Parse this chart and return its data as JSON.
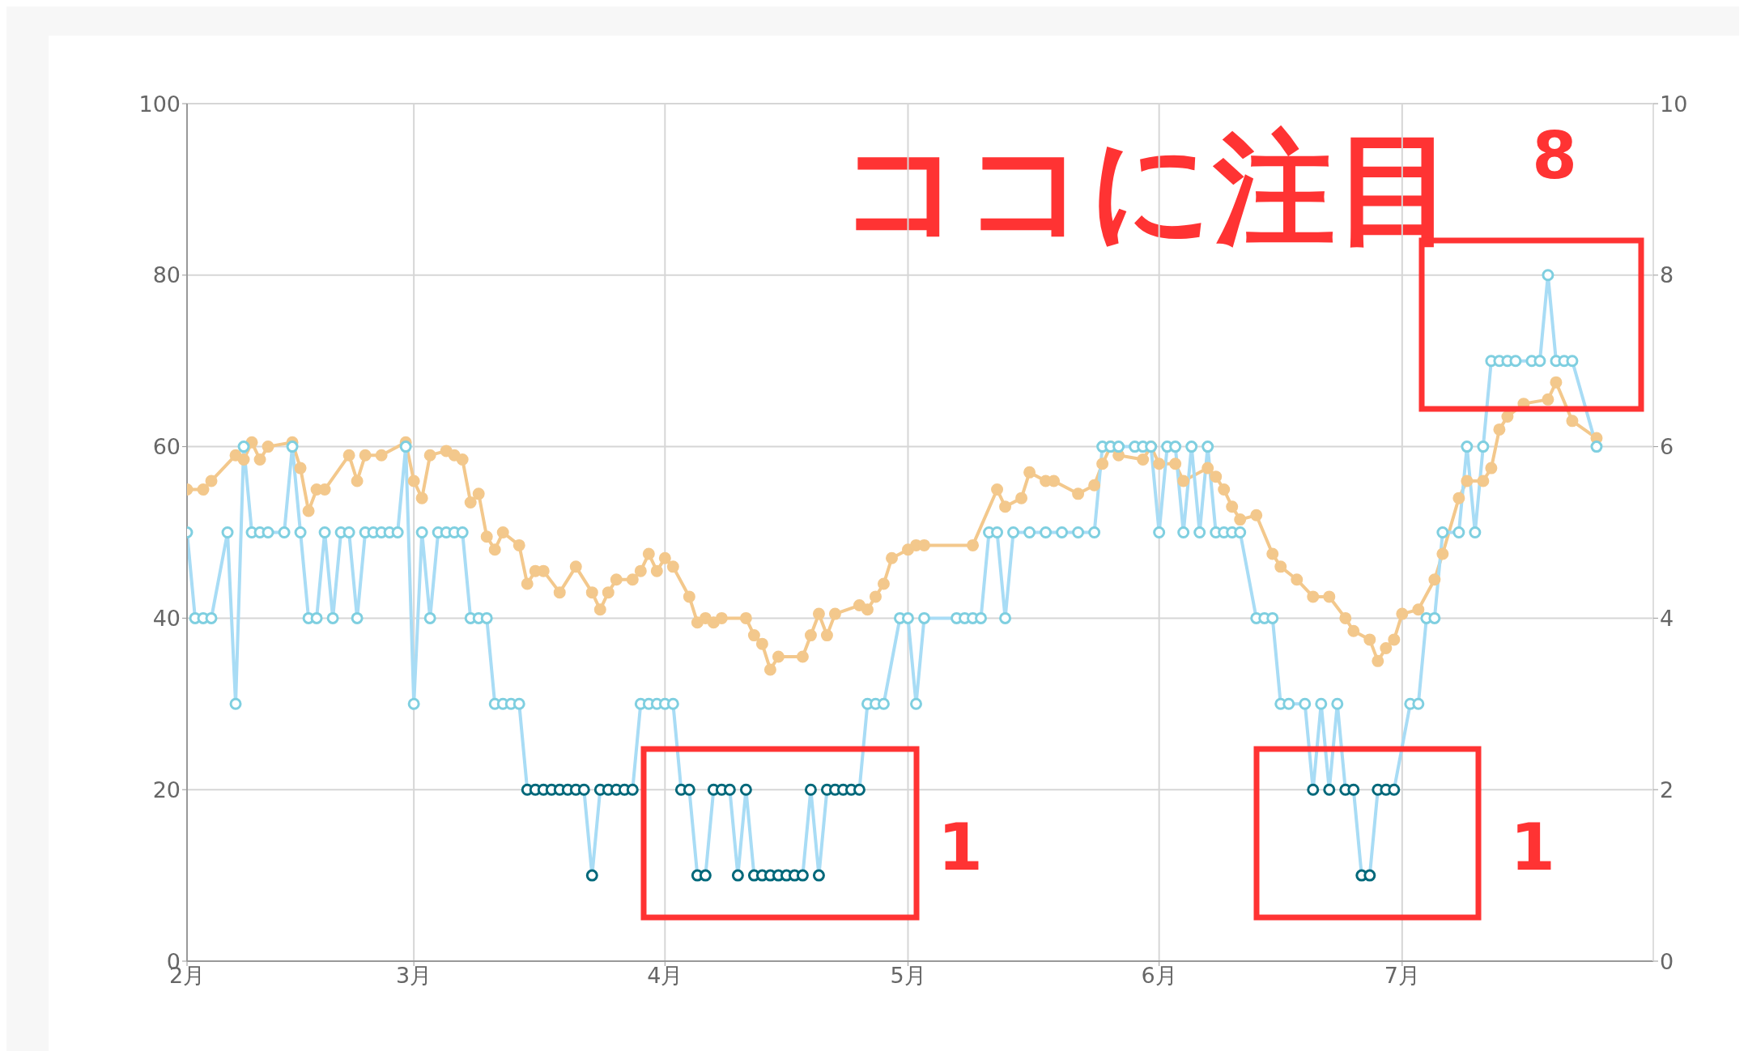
{
  "chart_data": {
    "type": "line",
    "xlim": [
      "--02-01",
      "--08-01"
    ],
    "xticks": [
      {
        "value": "--02-01",
        "label": "2月"
      },
      {
        "value": "--03-01",
        "label": "3月"
      },
      {
        "value": "--04-01",
        "label": "4月"
      },
      {
        "value": "--05-01",
        "label": "5月"
      },
      {
        "value": "--06-01",
        "label": "6月"
      },
      {
        "value": "--07-01",
        "label": "7月"
      }
    ],
    "ylim": [
      0,
      100
    ],
    "yticks": [
      0,
      20,
      40,
      60,
      80,
      100
    ],
    "y2lim": [
      0,
      10
    ],
    "y2ticks": [
      0,
      2,
      4,
      6,
      8,
      10
    ],
    "grid": true,
    "marker": "circle",
    "line_style": "solid",
    "annotations": [
      "ココに注目",
      "8",
      "1",
      "1"
    ],
    "series": [
      {
        "color": "#f3c88c",
        "x": [
          "--02-01",
          "--02-03",
          "--02-04",
          "--02-07",
          "--02-08",
          "--02-09",
          "--02-10",
          "--02-11",
          "--02-14",
          "--02-15",
          "--02-16",
          "--02-17",
          "--02-18",
          "--02-21",
          "--02-22",
          "--02-23",
          "--02-25",
          "--02-28",
          "--03-01",
          "--03-02",
          "--03-03",
          "--03-05",
          "--03-06",
          "--03-07",
          "--03-08",
          "--03-09",
          "--03-10",
          "--03-11",
          "--03-12",
          "--03-14",
          "--03-15",
          "--03-16",
          "--03-17",
          "--03-19",
          "--03-21",
          "--03-23",
          "--03-24",
          "--03-25",
          "--03-26",
          "--03-28",
          "--03-29",
          "--03-30",
          "--03-31",
          "--04-01",
          "--04-02",
          "--04-04",
          "--04-05",
          "--04-06",
          "--04-07",
          "--04-08",
          "--04-11",
          "--04-12",
          "--04-13",
          "--04-14",
          "--04-15",
          "--04-18",
          "--04-19",
          "--04-20",
          "--04-21",
          "--04-22",
          "--04-25",
          "--04-26",
          "--04-27",
          "--04-28",
          "--04-29",
          "--05-01",
          "--05-02",
          "--05-03",
          "--05-09",
          "--05-12",
          "--05-13",
          "--05-15",
          "--05-16",
          "--05-18",
          "--05-19",
          "--05-22",
          "--05-24",
          "--05-25",
          "--05-26",
          "--05-27",
          "--05-30",
          "--05-31",
          "--06-01",
          "--06-03",
          "--06-04",
          "--06-07",
          "--06-08",
          "--06-09",
          "--06-10",
          "--06-11",
          "--06-13",
          "--06-15",
          "--06-16",
          "--06-18",
          "--06-20",
          "--06-22",
          "--06-24",
          "--06-25",
          "--06-27",
          "--06-28",
          "--06-29",
          "--06-30",
          "--07-01",
          "--07-03",
          "--07-05",
          "--07-06",
          "--07-08",
          "--07-09",
          "--07-11",
          "--07-12",
          "--07-13",
          "--07-14",
          "--07-16",
          "--07-19",
          "--07-20",
          "--07-22",
          "--07-25"
        ],
        "values": [
          55,
          55,
          56,
          59,
          58.5,
          60.5,
          58.5,
          60,
          60.5,
          57.5,
          52.5,
          55,
          55,
          59,
          56,
          59,
          59,
          60.5,
          56,
          54,
          59,
          59.5,
          59,
          58.5,
          53.5,
          54.5,
          49.5,
          48,
          50,
          48.5,
          44,
          45.5,
          45.5,
          43,
          46,
          43,
          41,
          43,
          44.5,
          44.5,
          45.5,
          47.5,
          45.5,
          47,
          46,
          42.5,
          39.5,
          40,
          39.5,
          40,
          40,
          38,
          37,
          34,
          35.5,
          35.5,
          38,
          40.5,
          38,
          40.5,
          41.5,
          41,
          42.5,
          44,
          47,
          48,
          48.5,
          48.5,
          48.5,
          55,
          53,
          54,
          57,
          56,
          56,
          54.5,
          55.5,
          58,
          60,
          59,
          58.5,
          60,
          58,
          58,
          56,
          57.5,
          56.5,
          55,
          53,
          51.5,
          52,
          47.5,
          46,
          44.5,
          42.5,
          42.5,
          40,
          38.5,
          37.5,
          35,
          36.5,
          37.5,
          40.5,
          41,
          44.5,
          47.5,
          54,
          56,
          56,
          57.5,
          62,
          63.5,
          65,
          65.5,
          67.5,
          63,
          61
        ]
      },
      {
        "color": "#a8dcf5",
        "axis": "y2",
        "x": [
          "--02-01",
          "--02-02",
          "--02-03",
          "--02-04",
          "--02-06",
          "--02-07",
          "--02-08",
          "--02-09",
          "--02-10",
          "--02-11",
          "--02-13",
          "--02-14",
          "--02-15",
          "--02-16",
          "--02-17",
          "--02-18",
          "--02-19",
          "--02-20",
          "--02-21",
          "--02-22",
          "--02-23",
          "--02-24",
          "--02-25",
          "--02-26",
          "--02-27",
          "--02-28",
          "--03-01",
          "--03-02",
          "--03-03",
          "--03-04",
          "--03-05",
          "--03-06",
          "--03-07",
          "--03-08",
          "--03-09",
          "--03-10",
          "--03-11",
          "--03-12",
          "--03-13",
          "--03-14",
          "--03-15",
          "--03-16",
          "--03-17",
          "--03-18",
          "--03-19",
          "--03-20",
          "--03-21",
          "--03-22",
          "--03-23",
          "--03-24",
          "--03-25",
          "--03-26",
          "--03-27",
          "--03-28",
          "--03-29",
          "--03-30",
          "--03-31",
          "--04-01",
          "--04-02",
          "--04-03",
          "--04-04",
          "--04-05",
          "--04-06",
          "--04-07",
          "--04-08",
          "--04-09",
          "--04-10",
          "--04-11",
          "--04-12",
          "--04-13",
          "--04-14",
          "--04-15",
          "--04-16",
          "--04-17",
          "--04-18",
          "--04-19",
          "--04-20",
          "--04-21",
          "--04-22",
          "--04-23",
          "--04-24",
          "--04-25",
          "--04-26",
          "--04-27",
          "--04-28",
          "--04-30",
          "--05-01",
          "--05-02",
          "--05-03",
          "--05-07",
          "--05-08",
          "--05-09",
          "--05-10",
          "--05-11",
          "--05-12",
          "--05-13",
          "--05-14",
          "--05-16",
          "--05-18",
          "--05-20",
          "--05-22",
          "--05-24",
          "--05-25",
          "--05-26",
          "--05-27",
          "--05-29",
          "--05-30",
          "--05-31",
          "--06-01",
          "--06-02",
          "--06-03",
          "--06-04",
          "--06-05",
          "--06-06",
          "--06-07",
          "--06-08",
          "--06-09",
          "--06-10",
          "--06-11",
          "--06-13",
          "--06-14",
          "--06-15",
          "--06-16",
          "--06-17",
          "--06-19",
          "--06-20",
          "--06-21",
          "--06-22",
          "--06-23",
          "--06-24",
          "--06-25",
          "--06-26",
          "--06-27",
          "--06-28",
          "--06-29",
          "--06-30",
          "--07-02",
          "--07-03",
          "--07-04",
          "--07-05",
          "--07-06",
          "--07-08",
          "--07-09",
          "--07-10",
          "--07-11",
          "--07-12",
          "--07-13",
          "--07-14",
          "--07-15",
          "--07-17",
          "--07-18",
          "--07-19",
          "--07-20",
          "--07-21",
          "--07-22",
          "--07-25"
        ],
        "values": [
          5,
          4,
          4,
          4,
          5,
          3,
          6,
          5,
          5,
          5,
          5,
          6,
          5,
          4,
          4,
          5,
          4,
          5,
          5,
          4,
          5,
          5,
          5,
          5,
          5,
          6,
          3,
          5,
          4,
          5,
          5,
          5,
          5,
          4,
          4,
          4,
          3,
          3,
          3,
          3,
          2,
          2,
          2,
          2,
          2,
          2,
          2,
          2,
          1,
          2,
          2,
          2,
          2,
          2,
          3,
          3,
          3,
          3,
          3,
          2,
          2,
          1,
          1,
          2,
          2,
          2,
          1,
          2,
          1,
          1,
          1,
          1,
          1,
          1,
          1,
          2,
          1,
          2,
          2,
          2,
          2,
          2,
          3,
          3,
          3,
          4,
          4,
          3,
          4,
          4,
          4,
          4,
          4,
          5,
          5,
          4,
          5,
          5,
          5,
          5,
          5,
          5,
          6,
          6,
          6,
          6,
          6,
          6,
          5,
          6,
          6,
          5,
          6,
          5,
          6,
          5,
          5,
          5,
          5,
          4,
          4,
          4,
          3,
          3,
          3,
          2,
          3,
          2,
          3,
          2,
          2,
          1,
          1,
          2,
          2,
          2,
          3,
          3,
          4,
          4,
          5,
          5,
          6,
          5,
          6,
          7,
          7,
          7,
          7,
          7,
          7,
          8,
          7,
          7,
          7,
          6
        ],
        "colors": [
          "#7fcfe0",
          "#7fcfe0",
          "#7fcfe0",
          "#7fcfe0",
          "#7fcfe0",
          "#7fcfe0",
          "#7fcfe0",
          "#7fcfe0",
          "#7fcfe0",
          "#7fcfe0",
          "#7fcfe0",
          "#7fcfe0",
          "#7fcfe0",
          "#7fcfe0",
          "#7fcfe0",
          "#7fcfe0",
          "#7fcfe0",
          "#7fcfe0",
          "#7fcfe0",
          "#7fcfe0",
          "#7fcfe0",
          "#7fcfe0",
          "#7fcfe0",
          "#7fcfe0",
          "#7fcfe0",
          "#7fcfe0",
          "#7fcfe0",
          "#7fcfe0",
          "#7fcfe0",
          "#7fcfe0",
          "#7fcfe0",
          "#7fcfe0",
          "#7fcfe0",
          "#7fcfe0",
          "#7fcfe0",
          "#7fcfe0",
          "#7fcfe0",
          "#7fcfe0",
          "#7fcfe0",
          "#7fcfe0",
          "#00687a",
          "#00687a",
          "#00687a",
          "#00687a",
          "#00687a",
          "#00687a",
          "#00687a",
          "#00687a",
          "#00687a",
          "#00687a",
          "#00687a",
          "#00687a",
          "#00687a",
          "#00687a",
          "#7fcfe0",
          "#7fcfe0",
          "#7fcfe0",
          "#7fcfe0",
          "#7fcfe0",
          "#00687a",
          "#00687a",
          "#00687a",
          "#00687a",
          "#00687a",
          "#00687a",
          "#00687a",
          "#00687a",
          "#00687a",
          "#00687a",
          "#00687a",
          "#00687a",
          "#00687a",
          "#00687a",
          "#00687a",
          "#00687a",
          "#00687a",
          "#00687a",
          "#00687a",
          "#00687a",
          "#00687a",
          "#00687a",
          "#00687a",
          "#7fcfe0",
          "#7fcfe0",
          "#7fcfe0",
          "#7fcfe0",
          "#7fcfe0",
          "#7fcfe0",
          "#7fcfe0",
          "#7fcfe0",
          "#7fcfe0",
          "#7fcfe0",
          "#7fcfe0",
          "#7fcfe0",
          "#7fcfe0",
          "#7fcfe0",
          "#7fcfe0",
          "#7fcfe0",
          "#7fcfe0",
          "#7fcfe0",
          "#7fcfe0",
          "#7fcfe0",
          "#7fcfe0",
          "#7fcfe0",
          "#7fcfe0",
          "#7fcfe0",
          "#7fcfe0",
          "#7fcfe0",
          "#7fcfe0",
          "#7fcfe0",
          "#7fcfe0",
          "#7fcfe0",
          "#7fcfe0",
          "#7fcfe0",
          "#7fcfe0",
          "#7fcfe0",
          "#7fcfe0",
          "#7fcfe0",
          "#7fcfe0",
          "#7fcfe0",
          "#7fcfe0",
          "#7fcfe0",
          "#7fcfe0",
          "#7fcfe0",
          "#7fcfe0",
          "#00687a",
          "#7fcfe0",
          "#00687a",
          "#7fcfe0",
          "#00687a",
          "#00687a",
          "#00687a",
          "#00687a",
          "#00687a",
          "#00687a",
          "#00687a",
          "#7fcfe0",
          "#7fcfe0",
          "#7fcfe0",
          "#7fcfe0",
          "#7fcfe0",
          "#7fcfe0",
          "#7fcfe0",
          "#7fcfe0",
          "#7fcfe0",
          "#7fcfe0",
          "#7fcfe0",
          "#7fcfe0",
          "#7fcfe0",
          "#7fcfe0",
          "#7fcfe0",
          "#7fcfe0",
          "#7fcfe0",
          "#7fcfe0",
          "#7fcfe0",
          "#7fcfe0"
        ]
      }
    ]
  }
}
